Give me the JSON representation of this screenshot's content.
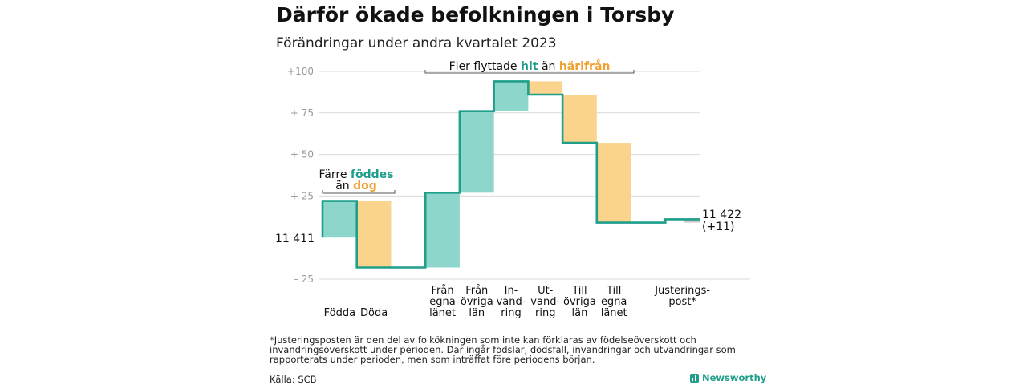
{
  "header": {
    "title": "Därför ökade befolkningen i Torsby",
    "subtitle": "Förändringar under andra kvartalet 2023"
  },
  "annotations": {
    "births_prefix": "Färre",
    "births_word": "föddes",
    "births_middle": "än",
    "births_deaths_word": "dog",
    "move_prefix": "Fler flyttade",
    "move_hit": "hit",
    "move_middle": "än",
    "move_harifran": "härifrån",
    "start_value": "11  411",
    "end_value": "11 422",
    "end_change": "(+11)"
  },
  "footer": {
    "footnote": "*Justeringsposten är den del av folkökningen som inte kan förklaras av födelseöverskott och invandringsöverskott under perioden. Där ingår födslar, dödsfall, invandringar och utvandringar som rapporterats under perioden, men som inträffat före periodens början.",
    "source": "Källa: SCB",
    "brand": "Newsworthy"
  },
  "colors": {
    "increase": "#8dd6cc",
    "decrease": "#fad48c",
    "adjustment": "#c8c8c8",
    "line": "#1f9e8a",
    "accent_teal": "#1f9e8a",
    "accent_orange": "#f0a030",
    "grid": "#d9d9d9",
    "tick": "#999999"
  },
  "chart_data": {
    "type": "waterfall",
    "start": 0,
    "end": 11,
    "ylim": [
      -27,
      103
    ],
    "yticks": [
      {
        "value": 100,
        "label": "+100"
      },
      {
        "value": 75,
        "label": "+  75"
      },
      {
        "value": 50,
        "label": "+  50"
      },
      {
        "value": 25,
        "label": "+  25"
      },
      {
        "value": -25,
        "label": "–  25"
      }
    ],
    "categories": [
      {
        "label": [
          "Födda"
        ],
        "delta": 22,
        "kind": "increase"
      },
      {
        "label": [
          "Döda"
        ],
        "delta": -40,
        "kind": "decrease"
      },
      {
        "label": [],
        "delta": 0,
        "kind": "spacer"
      },
      {
        "label": [
          "Från",
          "egna",
          "länet"
        ],
        "delta": 45,
        "kind": "increase"
      },
      {
        "label": [
          "Från",
          "övriga",
          "län"
        ],
        "delta": 49,
        "kind": "increase"
      },
      {
        "label": [
          "In-",
          "vand-",
          "ring"
        ],
        "delta": 18,
        "kind": "increase"
      },
      {
        "label": [
          "Ut-",
          "vand-",
          "ring"
        ],
        "delta": -8,
        "kind": "decrease"
      },
      {
        "label": [
          "Till",
          "övriga",
          "län"
        ],
        "delta": -29,
        "kind": "decrease"
      },
      {
        "label": [
          "Till",
          "egna",
          "länet"
        ],
        "delta": -48,
        "kind": "decrease"
      },
      {
        "label": [],
        "delta": 0,
        "kind": "spacer"
      },
      {
        "label": [
          "Justerings-",
          "post*"
        ],
        "delta": 2,
        "kind": "adjustment"
      }
    ]
  }
}
